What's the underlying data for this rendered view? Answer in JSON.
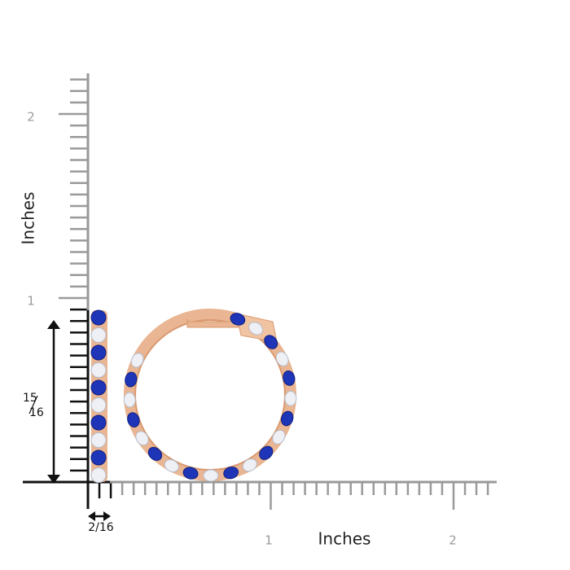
{
  "ruler": {
    "y_labels": [
      "2",
      "1"
    ],
    "y_title": "Inches",
    "x_labels": [
      "1",
      "2"
    ],
    "x_title": "Inches",
    "height_label": {
      "numerator": "15",
      "denominator": "16"
    },
    "width_label": "2/16"
  }
}
